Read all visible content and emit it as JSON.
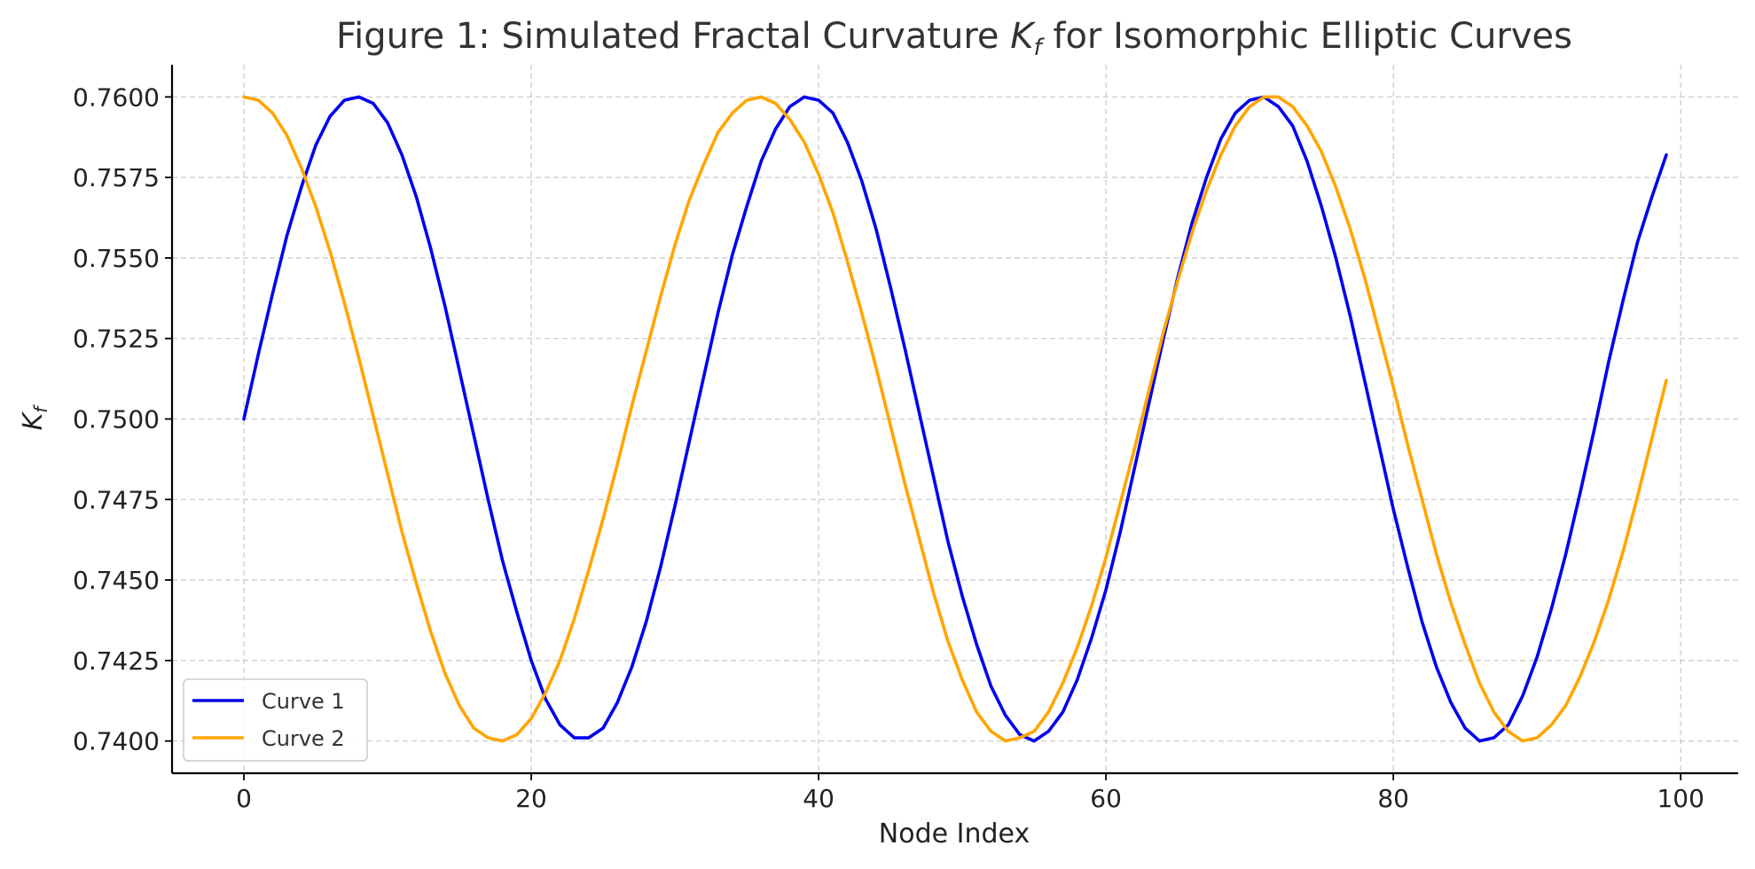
{
  "chart_data": {
    "type": "line",
    "title_prefix": "Figure 1: Simulated Fractal Curvature ",
    "title_symbol": "K",
    "title_symbol_sub": "f",
    "title_suffix": " for Isomorphic Elliptic Curves",
    "xlabel": "Node Index",
    "ylabel_symbol": "K",
    "ylabel_symbol_sub": "f",
    "xlim": [
      -5,
      104
    ],
    "ylim": [
      0.739,
      0.761
    ],
    "xticks": [
      0,
      20,
      40,
      60,
      80,
      100
    ],
    "xtick_labels": [
      "0",
      "20",
      "40",
      "60",
      "80",
      "100"
    ],
    "yticks": [
      0.74,
      0.7425,
      0.745,
      0.7475,
      0.75,
      0.7525,
      0.755,
      0.7575,
      0.76
    ],
    "ytick_labels": [
      "0.7400",
      "0.7425",
      "0.7450",
      "0.7475",
      "0.7500",
      "0.7525",
      "0.7550",
      "0.7575",
      "0.7600"
    ],
    "grid": true,
    "legend_position": "lower-left",
    "series": [
      {
        "name": "Curve 1",
        "color": "#0000ee",
        "x": [
          0,
          1,
          2,
          3,
          4,
          5,
          6,
          7,
          8,
          9,
          10,
          11,
          12,
          13,
          14,
          15,
          16,
          17,
          18,
          19,
          20,
          21,
          22,
          23,
          24,
          25,
          26,
          27,
          28,
          29,
          30,
          31,
          32,
          33,
          34,
          35,
          36,
          37,
          38,
          39,
          40,
          41,
          42,
          43,
          44,
          45,
          46,
          47,
          48,
          49,
          50,
          51,
          52,
          53,
          54,
          55,
          56,
          57,
          58,
          59,
          60,
          61,
          62,
          63,
          64,
          65,
          66,
          67,
          68,
          69,
          70,
          71,
          72,
          73,
          74,
          75,
          76,
          77,
          78,
          79,
          80,
          81,
          82,
          83,
          84,
          85,
          86,
          87,
          88,
          89,
          90,
          91,
          92,
          93,
          94,
          95,
          96,
          97,
          98,
          99
        ],
        "y": [
          0.75,
          0.752,
          0.7539,
          0.7557,
          0.7572,
          0.7585,
          0.7594,
          0.7599,
          0.76,
          0.7598,
          0.7592,
          0.7582,
          0.7569,
          0.7553,
          0.7535,
          0.7515,
          0.7495,
          0.7475,
          0.7456,
          0.744,
          0.7425,
          0.7413,
          0.7405,
          0.7401,
          0.7401,
          0.7404,
          0.7412,
          0.7423,
          0.7437,
          0.7454,
          0.7473,
          0.7493,
          0.7513,
          0.7533,
          0.7551,
          0.7566,
          0.758,
          0.759,
          0.7597,
          0.76,
          0.7599,
          0.7595,
          0.7586,
          0.7574,
          0.7559,
          0.7541,
          0.7522,
          0.7502,
          0.7482,
          0.7462,
          0.7445,
          0.743,
          0.7417,
          0.7408,
          0.7402,
          0.74,
          0.7403,
          0.7409,
          0.7419,
          0.7432,
          0.7447,
          0.7465,
          0.7485,
          0.7505,
          0.7525,
          0.7544,
          0.7561,
          0.7575,
          0.7587,
          0.7595,
          0.7599,
          0.76,
          0.7597,
          0.7591,
          0.758,
          0.7566,
          0.755,
          0.7532,
          0.7512,
          0.7492,
          0.7472,
          0.7454,
          0.7437,
          0.7423,
          0.7412,
          0.7404,
          0.74,
          0.7401,
          0.7405,
          0.7414,
          0.7426,
          0.7441,
          0.7458,
          0.7477,
          0.7497,
          0.7518,
          0.7537,
          0.7555,
          0.7569,
          0.7582
        ]
      },
      {
        "name": "Curve 2",
        "color": "#ffa500",
        "x": [
          0,
          1,
          2,
          3,
          4,
          5,
          6,
          7,
          8,
          9,
          10,
          11,
          12,
          13,
          14,
          15,
          16,
          17,
          18,
          19,
          20,
          21,
          22,
          23,
          24,
          25,
          26,
          27,
          28,
          29,
          30,
          31,
          32,
          33,
          34,
          35,
          36,
          37,
          38,
          39,
          40,
          41,
          42,
          43,
          44,
          45,
          46,
          47,
          48,
          49,
          50,
          51,
          52,
          53,
          54,
          55,
          56,
          57,
          58,
          59,
          60,
          61,
          62,
          63,
          64,
          65,
          66,
          67,
          68,
          69,
          70,
          71,
          72,
          73,
          74,
          75,
          76,
          77,
          78,
          79,
          80,
          81,
          82,
          83,
          84,
          85,
          86,
          87,
          88,
          89,
          90,
          91,
          92,
          93,
          94,
          95,
          96,
          97,
          98,
          99
        ],
        "y": [
          0.76,
          0.7599,
          0.7595,
          0.7588,
          0.7578,
          0.7566,
          0.7552,
          0.7536,
          0.7519,
          0.7501,
          0.7483,
          0.7465,
          0.7449,
          0.7434,
          0.7421,
          0.7411,
          0.7404,
          0.7401,
          0.74,
          0.7402,
          0.7407,
          0.7415,
          0.7425,
          0.7438,
          0.7453,
          0.7469,
          0.7486,
          0.7504,
          0.7521,
          0.7538,
          0.7554,
          0.7568,
          0.7579,
          0.7589,
          0.7595,
          0.7599,
          0.76,
          0.7598,
          0.7593,
          0.7586,
          0.7576,
          0.7564,
          0.7549,
          0.7533,
          0.7516,
          0.7498,
          0.748,
          0.7463,
          0.7446,
          0.7431,
          0.7419,
          0.7409,
          0.7403,
          0.74,
          0.7401,
          0.7403,
          0.7409,
          0.7418,
          0.7429,
          0.7442,
          0.7457,
          0.7474,
          0.7491,
          0.7509,
          0.7527,
          0.7543,
          0.7558,
          0.7571,
          0.7582,
          0.7591,
          0.7597,
          0.76,
          0.76,
          0.7597,
          0.7591,
          0.7583,
          0.7572,
          0.7559,
          0.7544,
          0.7527,
          0.751,
          0.7492,
          0.7475,
          0.7458,
          0.7443,
          0.743,
          0.7418,
          0.7409,
          0.7403,
          0.74,
          0.7401,
          0.7405,
          0.7411,
          0.742,
          0.7431,
          0.7444,
          0.7459,
          0.7476,
          0.7494,
          0.7512
        ]
      }
    ]
  }
}
